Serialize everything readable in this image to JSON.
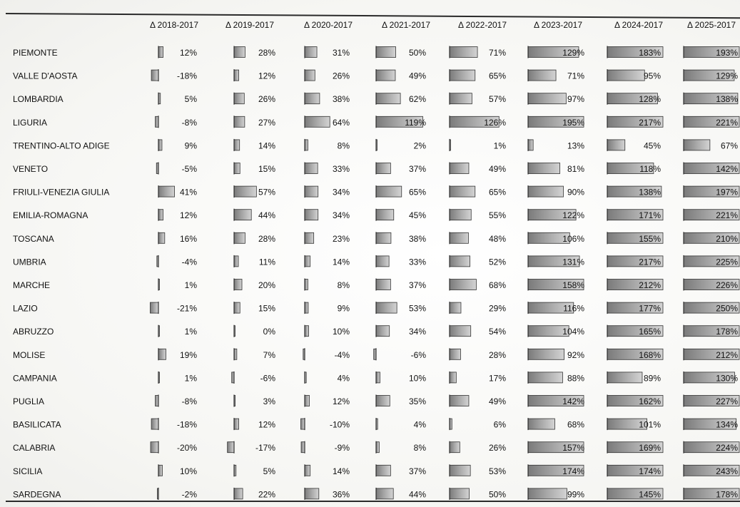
{
  "chart_data": {
    "type": "table",
    "title": "",
    "columns": [
      "Δ 2018-2017",
      "Δ 2019-2017",
      "Δ 2020-2017",
      "Δ 2021-2017",
      "Δ 2022-2017",
      "Δ 2023-2017",
      "Δ 2024-2017",
      "Δ 2025-2017"
    ],
    "rows": [
      {
        "region": "PIEMONTE",
        "values": [
          12,
          28,
          31,
          50,
          71,
          129,
          183,
          193
        ]
      },
      {
        "region": "VALLE D'AOSTA",
        "values": [
          -18,
          12,
          26,
          49,
          65,
          71,
          95,
          129
        ]
      },
      {
        "region": "LOMBARDIA",
        "values": [
          5,
          26,
          38,
          62,
          57,
          97,
          128,
          138
        ]
      },
      {
        "region": "LIGURIA",
        "values": [
          -8,
          27,
          64,
          119,
          126,
          195,
          217,
          221
        ]
      },
      {
        "region": "TRENTINO-ALTO ADIGE",
        "values": [
          9,
          14,
          8,
          2,
          1,
          13,
          45,
          67
        ]
      },
      {
        "region": "VENETO",
        "values": [
          -5,
          15,
          33,
          37,
          49,
          81,
          118,
          142
        ]
      },
      {
        "region": "FRIULI-VENEZIA GIULIA",
        "values": [
          41,
          57,
          34,
          65,
          65,
          90,
          138,
          197
        ]
      },
      {
        "region": "EMILIA-ROMAGNA",
        "values": [
          12,
          44,
          34,
          45,
          55,
          122,
          171,
          221
        ]
      },
      {
        "region": "TOSCANA",
        "values": [
          16,
          28,
          23,
          38,
          48,
          106,
          155,
          210
        ]
      },
      {
        "region": "UMBRIA",
        "values": [
          -4,
          11,
          14,
          33,
          52,
          131,
          217,
          225
        ]
      },
      {
        "region": "MARCHE",
        "values": [
          1,
          20,
          8,
          37,
          68,
          158,
          212,
          226
        ]
      },
      {
        "region": "LAZIO",
        "values": [
          -21,
          15,
          9,
          53,
          29,
          116,
          177,
          250
        ]
      },
      {
        "region": "ABRUZZO",
        "values": [
          1,
          0,
          10,
          34,
          54,
          104,
          165,
          178
        ]
      },
      {
        "region": "MOLISE",
        "values": [
          19,
          7,
          -4,
          -6,
          28,
          92,
          168,
          212
        ]
      },
      {
        "region": "CAMPANIA",
        "values": [
          1,
          -6,
          4,
          10,
          17,
          88,
          89,
          130
        ]
      },
      {
        "region": "PUGLIA",
        "values": [
          -8,
          3,
          12,
          35,
          49,
          142,
          162,
          227
        ]
      },
      {
        "region": "BASILICATA",
        "values": [
          -18,
          12,
          -10,
          4,
          6,
          68,
          101,
          134
        ]
      },
      {
        "region": "CALABRIA",
        "values": [
          -20,
          -17,
          -9,
          8,
          26,
          157,
          169,
          224
        ]
      },
      {
        "region": "SICILIA",
        "values": [
          10,
          5,
          14,
          37,
          53,
          174,
          174,
          243
        ]
      },
      {
        "region": "SARDEGNA",
        "values": [
          -2,
          22,
          36,
          44,
          50,
          99,
          145,
          178
        ]
      }
    ],
    "value_suffix": "%"
  }
}
